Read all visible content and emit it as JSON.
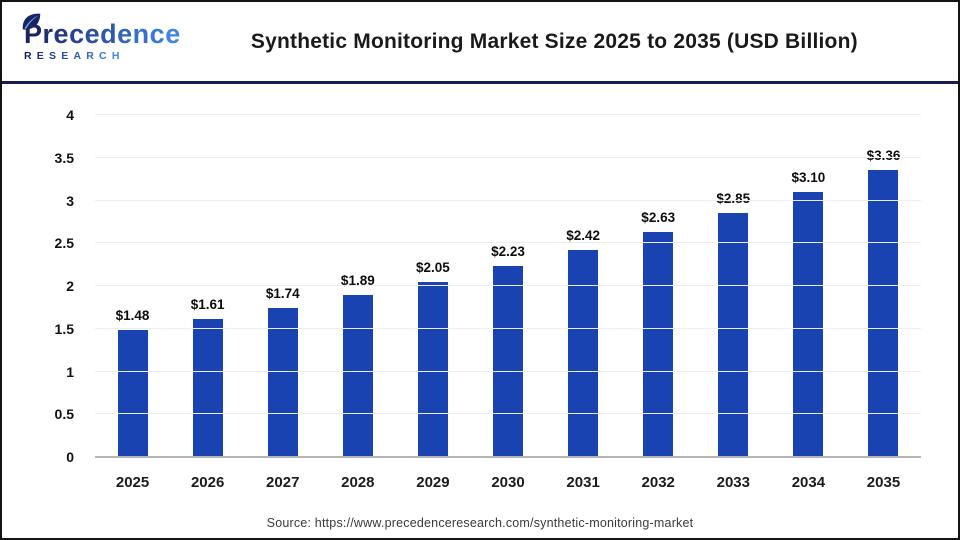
{
  "header": {
    "logo": {
      "line1": "Precedence",
      "line2": "RESEARCH",
      "icon": "leaf-icon"
    },
    "title": "Synthetic Monitoring Market Size 2025 to 2035 (USD Billion)"
  },
  "chart_data": {
    "type": "bar",
    "title": "Synthetic Monitoring Market Size 2025 to 2035 (USD Billion)",
    "categories": [
      "2025",
      "2026",
      "2027",
      "2028",
      "2029",
      "2030",
      "2031",
      "2032",
      "2033",
      "2034",
      "2035"
    ],
    "values": [
      1.48,
      1.61,
      1.74,
      1.89,
      2.05,
      2.23,
      2.42,
      2.63,
      2.85,
      3.1,
      3.36
    ],
    "data_labels": [
      "$1.48",
      "$1.61",
      "$1.74",
      "$1.89",
      "$2.05",
      "$2.23",
      "$2.42",
      "$2.63",
      "$2.85",
      "$3.10",
      "$3.36"
    ],
    "xlabel": "",
    "ylabel": "",
    "ylim": [
      0,
      4
    ],
    "yticks": [
      0,
      0.5,
      1,
      1.5,
      2,
      2.5,
      3,
      3.5,
      4
    ],
    "ytick_labels": [
      "0",
      "0.5",
      "1",
      "1.5",
      "2",
      "2.5",
      "3",
      "3.5",
      "4"
    ],
    "grid": "horizontal",
    "legend": "none"
  },
  "footer": {
    "source": "Source: https://www.precedenceresearch.com/synthetic-monitoring-market"
  },
  "colors": {
    "bar": "#1843b0",
    "header_divider": "#1a1b4e",
    "grid_line": "#ededed",
    "axis_line": "#b5b5b5",
    "logo_dark": "#1a2465",
    "logo_light": "#3f84e6",
    "title_text": "#1a1a1a"
  }
}
